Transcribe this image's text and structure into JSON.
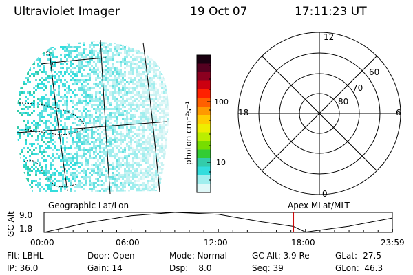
{
  "header": {
    "title": "Ultraviolet Imager",
    "date": "19 Oct 07",
    "time": "17:11:23 UT"
  },
  "colorbar": {
    "label": "photon cm⁻²s⁻¹",
    "ticks": [
      "100",
      "10"
    ],
    "colors": [
      "#1a0010",
      "#550020",
      "#8b0020",
      "#cc0010",
      "#ff2000",
      "#ff6000",
      "#ff9900",
      "#ffcc00",
      "#eeee00",
      "#bbee00",
      "#77dd00",
      "#33cc33",
      "#33ccaa",
      "#33dddd",
      "#a0eeee",
      "#dff8f8"
    ]
  },
  "polar_plot": {
    "mlt_labels": [
      "12",
      "18",
      "6",
      "0"
    ],
    "lat_labels": [
      "60",
      "70",
      "80"
    ]
  },
  "strip": {
    "left_label": "Geographic Lat/Lon",
    "right_label": "Apex MLat/MLT",
    "axis_label": "GC Alt",
    "y_ticks": [
      "9.0",
      "1.8"
    ],
    "x_ticks": [
      "00:00",
      "06:00",
      "12:00",
      "18:00",
      "23:59"
    ]
  },
  "chart_data": {
    "type": "line",
    "title": "",
    "xlabel": "",
    "ylabel": "GC Alt",
    "x": [
      "00:00",
      "03:00",
      "06:00",
      "09:00",
      "12:00",
      "15:00",
      "17:11",
      "18:00",
      "21:00",
      "23:59"
    ],
    "series": [
      {
        "values": [
          1.8,
          5.3,
          7.8,
          9.0,
          8.3,
          5.6,
          3.9,
          1.9,
          4.0,
          7.0
        ]
      }
    ],
    "ylim": [
      1.8,
      9.0
    ],
    "marker_time": "17:11",
    "marker_color": "#cc0000"
  },
  "status": {
    "flt": "Flt: LBHL",
    "ip": "IP: 36.0",
    "door": "Door: Open",
    "gain": "Gain: 14",
    "mode": "Mode: Normal",
    "dsp": "Dsp:    8.0",
    "gcalt": "GC Alt: 3.9 Re",
    "seq": "Seq: 39",
    "glat": "GLat: -27.5",
    "glon": "GLon:  46.3"
  }
}
